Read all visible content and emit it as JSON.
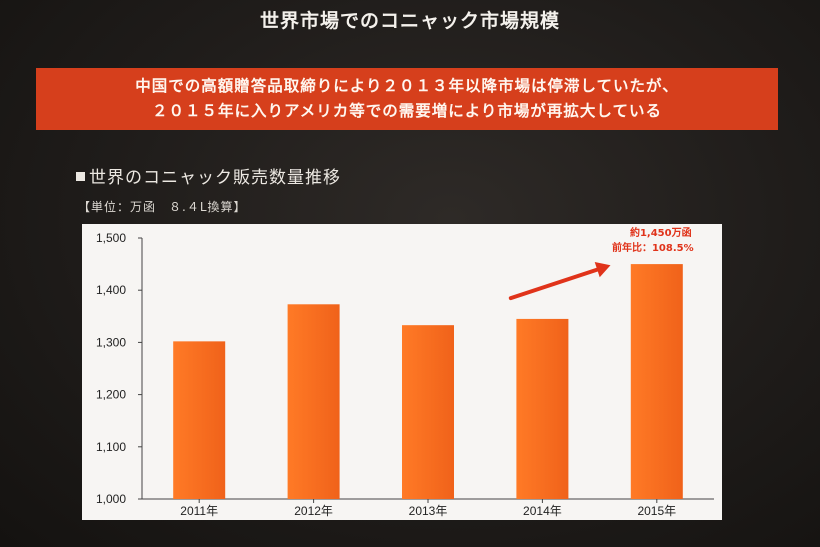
{
  "slide": {
    "title": "世界市場でのコニャック市場規模"
  },
  "banner": {
    "line1": "中国での高額贈答品取締りにより２０１３年以降市場は停滞していたが、",
    "line2": "２０１５年に入りアメリカ等での需要増により市場が再拡大している"
  },
  "section": {
    "title": "世界のコニャック販売数量推移",
    "unit_note": "【単位：万函　８.４L換算】"
  },
  "chart_data": {
    "type": "bar",
    "categories": [
      "2011年",
      "2012年",
      "2013年",
      "2014年",
      "2015年"
    ],
    "values": [
      1302,
      1373,
      1333,
      1345,
      1450
    ],
    "ylim": [
      1000,
      1500
    ],
    "yticks": [
      "1,000",
      "1,100",
      "1,200",
      "1,300",
      "1,400",
      "1,500"
    ],
    "grid": false,
    "bar_color": "#f0621a",
    "annotation": {
      "line1": "約1,450万函",
      "line2": "前年比：108.5%",
      "color": "#e0331a",
      "target_category": "2015年"
    }
  }
}
